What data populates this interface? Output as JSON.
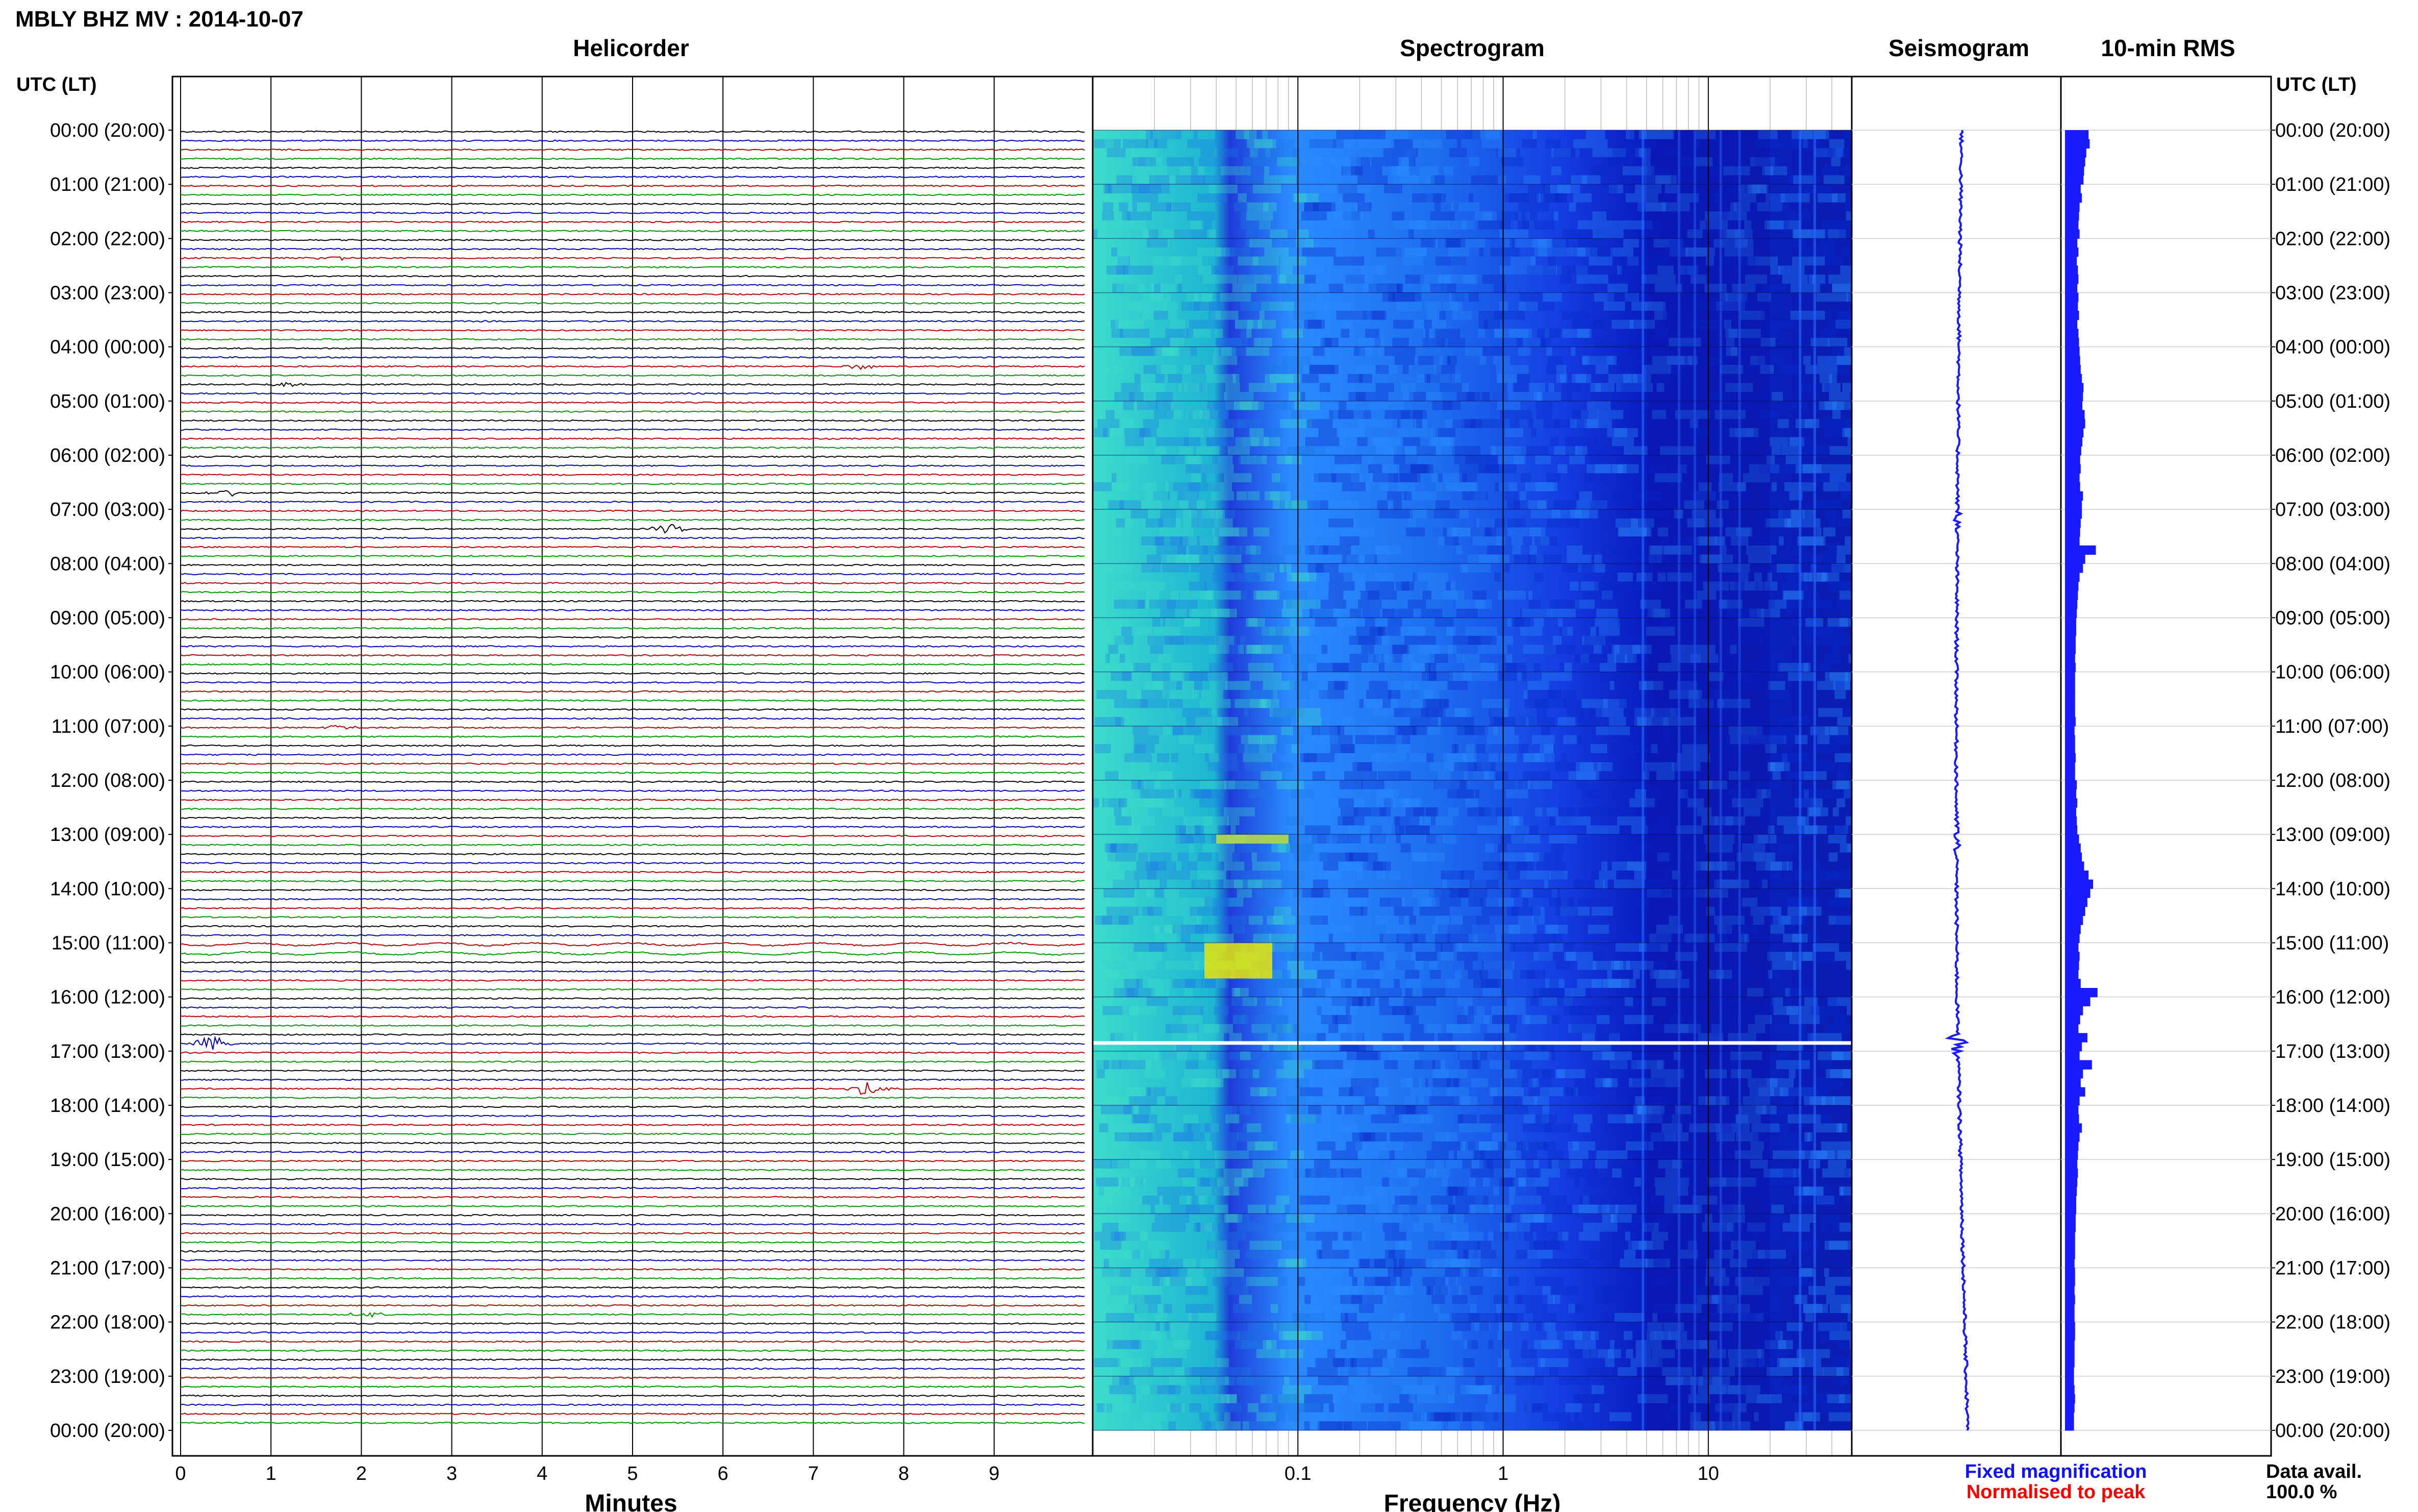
{
  "figure": {
    "title": "MBLY BHZ MV : 2014-10-07",
    "utc_label_left": "UTC (LT)",
    "utc_label_right": "UTC (LT)",
    "legend": {
      "fixed_label": "Fixed magnification",
      "normalised_label": "Normalised to peak",
      "fixed_color": "#1010ff",
      "normalised_color": "#ff0000"
    },
    "data_avail": {
      "label": "Data avail.",
      "value": "100.0 %"
    }
  },
  "colors": {
    "trace_cycle": [
      "#000000",
      "#0000b4",
      "#b40000",
      "#009600"
    ],
    "spectrogram_low": "#0a14c8",
    "spectrogram_mid": "#2a8cff",
    "spectrogram_high": "#3cdccc",
    "spectrogram_peak": "#e6e60a",
    "rms_bar": "#1a1aff",
    "seismo_trace": "#1a1aff"
  },
  "chart_data": [
    {
      "type": "line",
      "title": "Helicorder",
      "xlabel": "Minutes",
      "ylabel": "UTC (LT)",
      "x_ticks": [
        "0",
        "1",
        "2",
        "3",
        "4",
        "5",
        "6",
        "7",
        "8",
        "9"
      ],
      "xlim": [
        0,
        10
      ],
      "lines_per_hour": 6,
      "hours": 24,
      "y_tick_labels": [
        "00:00 (20:00)",
        "01:00 (21:00)",
        "02:00 (22:00)",
        "03:00 (23:00)",
        "04:00 (00:00)",
        "05:00 (01:00)",
        "06:00 (02:00)",
        "07:00 (03:00)",
        "08:00 (04:00)",
        "09:00 (05:00)",
        "10:00 (06:00)",
        "11:00 (07:00)",
        "12:00 (08:00)",
        "13:00 (09:00)",
        "14:00 (10:00)",
        "15:00 (11:00)",
        "16:00 (12:00)",
        "17:00 (13:00)",
        "18:00 (14:00)",
        "19:00 (15:00)",
        "20:00 (16:00)",
        "21:00 (17:00)",
        "22:00 (18:00)",
        "23:00 (19:00)",
        "00:00 (20:00)"
      ],
      "events": [
        {
          "hour": 16.9,
          "minute": 0.35,
          "strength": 1.0
        },
        {
          "hour": 17.6,
          "minute": 7.6,
          "strength": 0.9
        },
        {
          "hour": 7.3,
          "minute": 5.4,
          "strength": 0.6
        },
        {
          "hour": 6.7,
          "minute": 0.5,
          "strength": 0.5
        },
        {
          "hour": 4.4,
          "minute": 7.5,
          "strength": 0.4
        },
        {
          "hour": 21.9,
          "minute": 2.05,
          "strength": 0.4
        },
        {
          "hour": 2.3,
          "minute": 1.7,
          "strength": 0.3
        },
        {
          "hour": 11.0,
          "minute": 1.75,
          "strength": 0.3
        },
        {
          "hour": 4.6,
          "minute": 1.2,
          "strength": 0.3
        }
      ]
    },
    {
      "type": "heatmap",
      "title": "Spectrogram",
      "xlabel": "Frequency (Hz)",
      "x_scale": "log",
      "xlim": [
        0.01,
        50
      ],
      "x_ticks": [
        "0.1",
        "1",
        "10"
      ],
      "y_range_hours": [
        0,
        24
      ],
      "data_gap_hour": 16.85
    },
    {
      "type": "line",
      "title": "Seismogram",
      "y_range_hours": [
        0,
        24
      ]
    },
    {
      "type": "bar",
      "title": "10-min RMS",
      "y_range_hours": [
        0,
        24
      ],
      "bin_minutes": 10,
      "values": [
        0.42,
        0.44,
        0.38,
        0.36,
        0.34,
        0.33,
        0.28,
        0.3,
        0.26,
        0.25,
        0.24,
        0.26,
        0.22,
        0.24,
        0.21,
        0.23,
        0.24,
        0.22,
        0.24,
        0.23,
        0.25,
        0.22,
        0.24,
        0.25,
        0.26,
        0.27,
        0.28,
        0.3,
        0.33,
        0.32,
        0.31,
        0.35,
        0.36,
        0.33,
        0.31,
        0.29,
        0.27,
        0.28,
        0.26,
        0.27,
        0.32,
        0.3,
        0.3,
        0.28,
        0.27,
        0.26,
        0.55,
        0.36,
        0.32,
        0.26,
        0.24,
        0.23,
        0.22,
        0.21,
        0.2,
        0.2,
        0.19,
        0.19,
        0.18,
        0.19,
        0.18,
        0.18,
        0.18,
        0.18,
        0.18,
        0.19,
        0.17,
        0.18,
        0.18,
        0.19,
        0.18,
        0.18,
        0.21,
        0.2,
        0.22,
        0.2,
        0.21,
        0.22,
        0.25,
        0.28,
        0.3,
        0.34,
        0.42,
        0.5,
        0.45,
        0.4,
        0.36,
        0.32,
        0.28,
        0.26,
        0.24,
        0.26,
        0.25,
        0.24,
        0.28,
        0.58,
        0.45,
        0.32,
        0.27,
        0.24,
        0.4,
        0.3,
        0.26,
        0.48,
        0.32,
        0.28,
        0.36,
        0.26,
        0.24,
        0.25,
        0.3,
        0.26,
        0.24,
        0.23,
        0.22,
        0.23,
        0.22,
        0.21,
        0.2,
        0.2,
        0.19,
        0.19,
        0.18,
        0.18,
        0.18,
        0.17,
        0.18,
        0.18,
        0.17,
        0.18,
        0.17,
        0.17,
        0.18,
        0.18,
        0.17,
        0.17,
        0.17,
        0.16,
        0.16,
        0.17,
        0.18,
        0.17,
        0.16,
        0.16
      ]
    }
  ]
}
